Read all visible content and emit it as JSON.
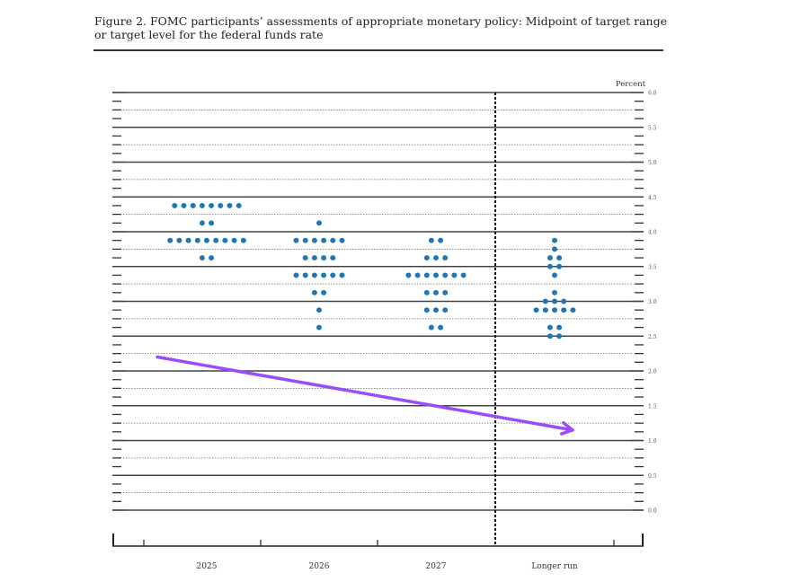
{
  "figure": {
    "title": "Figure 2.  FOMC participants’ assessments of appropriate monetary policy:  Midpoint of target range or target level for the federal funds rate"
  },
  "chart_data": {
    "type": "scatter",
    "subtype": "dot-plot",
    "ylabel": "Percent",
    "ylim": [
      0,
      6
    ],
    "y_ticks": [
      "0.0",
      "0.5",
      "1.0",
      "1.5",
      "2.0",
      "2.5",
      "3.0",
      "3.5",
      "4.0",
      "4.5",
      "5.0",
      "5.5",
      "6.0"
    ],
    "grid": true,
    "categories": [
      "2025",
      "2026",
      "2027",
      "Longer run"
    ],
    "dots": [
      {
        "category": "2025",
        "rates": [
          {
            "y": 4.375,
            "count": 8
          },
          {
            "y": 4.125,
            "count": 2
          },
          {
            "y": 3.875,
            "count": 9
          },
          {
            "y": 3.625,
            "count": 2
          }
        ]
      },
      {
        "category": "2026",
        "rates": [
          {
            "y": 4.125,
            "count": 1
          },
          {
            "y": 3.875,
            "count": 6
          },
          {
            "y": 3.625,
            "count": 4
          },
          {
            "y": 3.375,
            "count": 6
          },
          {
            "y": 3.125,
            "count": 2
          },
          {
            "y": 2.875,
            "count": 1
          },
          {
            "y": 2.625,
            "count": 1
          }
        ]
      },
      {
        "category": "2027",
        "rates": [
          {
            "y": 3.875,
            "count": 2
          },
          {
            "y": 3.625,
            "count": 3
          },
          {
            "y": 3.375,
            "count": 7
          },
          {
            "y": 3.125,
            "count": 3
          },
          {
            "y": 2.875,
            "count": 3
          },
          {
            "y": 2.625,
            "count": 2
          }
        ]
      },
      {
        "category": "Longer run",
        "rates": [
          {
            "y": 3.875,
            "count": 1
          },
          {
            "y": 3.75,
            "count": 1
          },
          {
            "y": 3.625,
            "count": 2
          },
          {
            "y": 3.5,
            "count": 2
          },
          {
            "y": 3.375,
            "count": 1
          },
          {
            "y": 3.125,
            "count": 1
          },
          {
            "y": 3.0,
            "count": 3
          },
          {
            "y": 2.875,
            "count": 5
          },
          {
            "y": 2.625,
            "count": 2
          },
          {
            "y": 2.5,
            "count": 2
          }
        ]
      }
    ],
    "annotation": {
      "type": "arrow",
      "from": {
        "category": "2025",
        "y": 2.2
      },
      "to": {
        "category": "Longer run",
        "y": 1.15
      },
      "color": "#9a4cff"
    },
    "colors": {
      "dots": "#1f77b4",
      "axis": "#333333",
      "grid": "#555555"
    }
  }
}
